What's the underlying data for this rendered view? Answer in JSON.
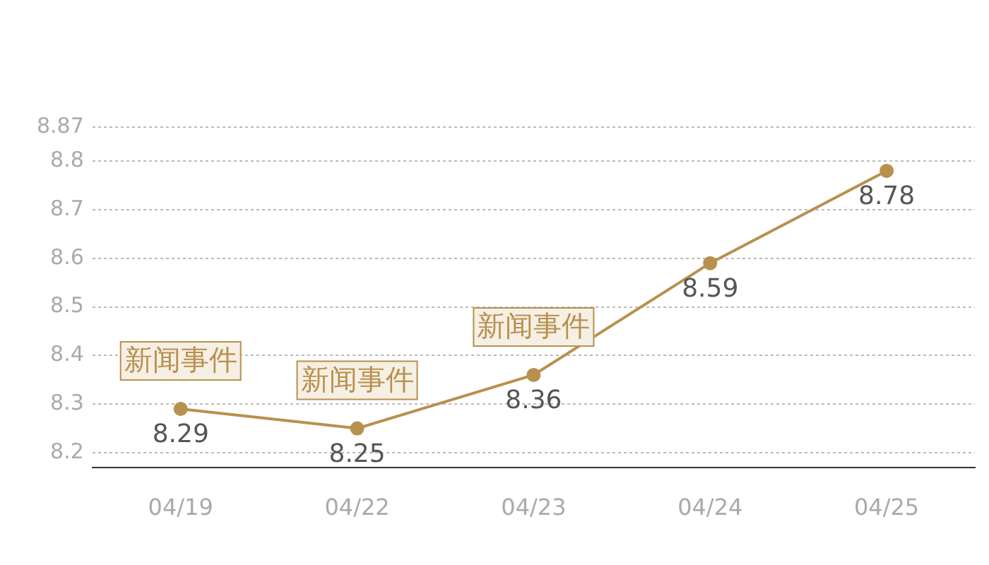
{
  "chart_data": {
    "type": "line",
    "categories": [
      "04/19",
      "04/22",
      "04/23",
      "04/24",
      "04/25"
    ],
    "series": [
      {
        "color": "#b8914f",
        "values": [
          8.29,
          8.25,
          8.36,
          8.59,
          8.78
        ]
      }
    ],
    "ylim": [
      8.17,
      8.87
    ],
    "yticks": [
      8.2,
      8.3,
      8.4,
      8.5,
      8.6,
      8.7,
      8.8,
      8.87
    ],
    "grid": "y",
    "legend": false,
    "marker": "circle",
    "line_style": "solid",
    "data_labels": true,
    "annotations": [
      {
        "text": "新闻事件",
        "x": "04/19",
        "y": 8.29
      },
      {
        "text": "新闻事件",
        "x": "04/22",
        "y": 8.25
      },
      {
        "text": "新闻事件",
        "x": "04/23",
        "y": 8.36
      }
    ]
  }
}
